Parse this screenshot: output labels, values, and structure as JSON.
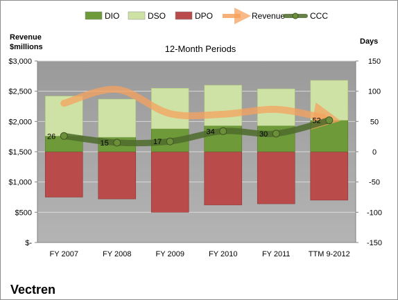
{
  "chart_data": {
    "type": "bar",
    "title": "12-Month Periods",
    "company": "Vectren",
    "left_axis_label": [
      "Revenue",
      "$millions"
    ],
    "right_axis_label": "Days",
    "categories": [
      "FY 2007",
      "FY 2008",
      "FY 2009",
      "FY 2010",
      "FY 2011",
      "TTM 9-2012"
    ],
    "left_ticks": [
      "$-",
      "$500",
      "$1,000",
      "$1,500",
      "$2,000",
      "$2,500",
      "$3,000"
    ],
    "right_ticks": [
      "-150",
      "-100",
      "-50",
      "0",
      "50",
      "100",
      "150"
    ],
    "left_range": [
      0,
      3000
    ],
    "right_range": [
      -150,
      150
    ],
    "legend": [
      "DIO",
      "DSO",
      "DPO",
      "Revenue",
      "CCC"
    ],
    "legend_position": "top",
    "series": [
      {
        "name": "DIO",
        "axis": "right",
        "values": [
          26,
          24,
          38,
          43,
          43,
          52
        ]
      },
      {
        "name": "DSO",
        "axis": "right",
        "values": [
          66,
          63,
          67,
          67,
          61,
          66
        ]
      },
      {
        "name": "DPO",
        "axis": "right",
        "values": [
          -75,
          -78,
          -100,
          -88,
          -86,
          -80
        ]
      },
      {
        "name": "Revenue",
        "axis": "left",
        "values": [
          2300,
          2530,
          2130,
          2120,
          2200,
          2060
        ]
      },
      {
        "name": "CCC",
        "axis": "right",
        "values": [
          26,
          15,
          17,
          34,
          30,
          52
        ]
      }
    ],
    "ccc_labels": [
      "26",
      "15",
      "17",
      "34",
      "30",
      "52"
    ],
    "colors": {
      "DIO": "#6f9a3a",
      "DSO": "#cfe2a5",
      "DPO": "#b94b4b",
      "Revenue": "#f5a25e",
      "CCC": "#4e6b2c",
      "plot_bg": "#999999"
    }
  }
}
